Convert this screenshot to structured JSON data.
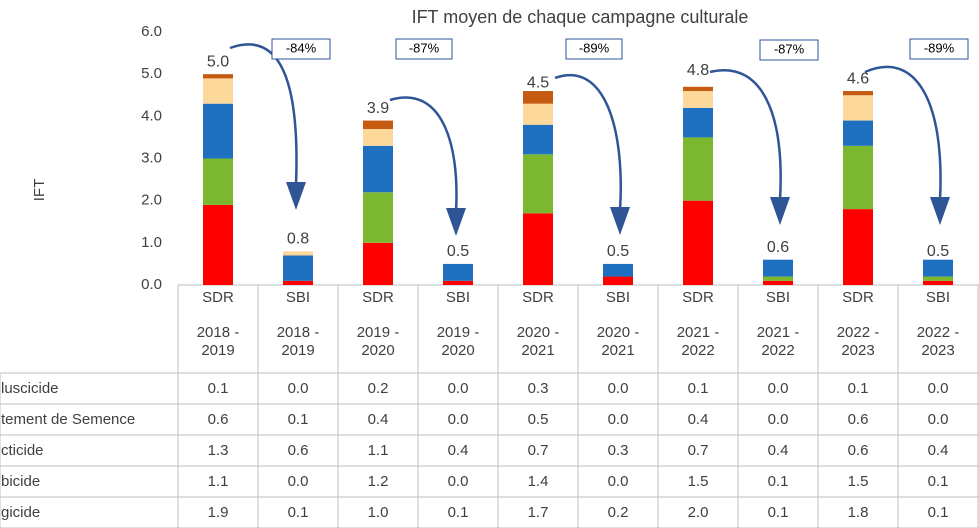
{
  "chart_data": {
    "type": "bar",
    "stacked": true,
    "title": "IFT moyen de chaque campagne culturale",
    "y_label": "IFT",
    "categories": [
      "SDR",
      "SBI",
      "SDR",
      "SBI",
      "SDR",
      "SBI",
      "SDR",
      "SBI",
      "SDR",
      "SBI"
    ],
    "periods": [
      "2018 - 2019",
      "2018 - 2019",
      "2019 - 2020",
      "2019 - 2020",
      "2020 - 2021",
      "2020 - 2021",
      "2021 - 2022",
      "2021 - 2022",
      "2022 - 2023",
      "2022 - 2023"
    ],
    "series": [
      {
        "name": "luscicide",
        "color": "#c55a11",
        "values": [
          0.1,
          0.0,
          0.2,
          0.0,
          0.3,
          0.0,
          0.1,
          0.0,
          0.1,
          0.0
        ],
        "value_labels": [
          "0.1",
          "0.0",
          "0.2",
          "0.0",
          "0.3",
          "0.0",
          "0.1",
          "0.0",
          "0.1",
          "0.0"
        ]
      },
      {
        "name": "tement de Semence",
        "color": "#fcd89b",
        "values": [
          0.6,
          0.1,
          0.4,
          0.0,
          0.5,
          0.0,
          0.4,
          0.0,
          0.6,
          0.0
        ],
        "value_labels": [
          "0.6",
          "0.1",
          "0.4",
          "0.0",
          "0.5",
          "0.0",
          "0.4",
          "0.0",
          "0.6",
          "0.0"
        ]
      },
      {
        "name": "cticide",
        "color": "#1f70c1",
        "values": [
          1.3,
          0.6,
          1.1,
          0.4,
          0.7,
          0.3,
          0.7,
          0.4,
          0.6,
          0.4
        ],
        "value_labels": [
          "1.3",
          "0.6",
          "1.1",
          "0.4",
          "0.7",
          "0.3",
          "0.7",
          "0.4",
          "0.6",
          "0.4"
        ]
      },
      {
        "name": "bicide",
        "color": "#7cb82f",
        "values": [
          1.1,
          0.0,
          1.2,
          0.0,
          1.4,
          0.0,
          1.5,
          0.1,
          1.5,
          0.1
        ],
        "value_labels": [
          "1.1",
          "0.0",
          "1.2",
          "0.0",
          "1.4",
          "0.0",
          "1.5",
          "0.1",
          "1.5",
          "0.1"
        ]
      },
      {
        "name": "gicide",
        "color": "#ff0000",
        "values": [
          1.9,
          0.1,
          1.0,
          0.1,
          1.7,
          0.2,
          2.0,
          0.1,
          1.8,
          0.1
        ],
        "value_labels": [
          "1.9",
          "0.1",
          "1.0",
          "0.1",
          "1.7",
          "0.2",
          "2.0",
          "0.1",
          "1.8",
          "0.1"
        ]
      }
    ],
    "totals": [
      5.0,
      0.8,
      3.9,
      0.5,
      4.5,
      0.5,
      4.8,
      0.6,
      4.6,
      0.5
    ],
    "totals_labels": [
      "5.0",
      "0.8",
      "3.9",
      "0.5",
      "4.5",
      "0.5",
      "4.8",
      "0.6",
      "4.6",
      "0.5"
    ],
    "annotations": [
      "-84%",
      "-87%",
      "-89%",
      "-87%",
      "-89%"
    ],
    "ylim": [
      0,
      6
    ],
    "yticks": [
      {
        "value": 0,
        "label": "0.0"
      },
      {
        "value": 1,
        "label": "1.0"
      },
      {
        "value": 2,
        "label": "2.0"
      },
      {
        "value": 3,
        "label": "3.0"
      },
      {
        "value": 4,
        "label": "4.0"
      },
      {
        "value": 5,
        "label": "5.0"
      },
      {
        "value": 6,
        "label": "6.0"
      }
    ],
    "grid": false
  }
}
